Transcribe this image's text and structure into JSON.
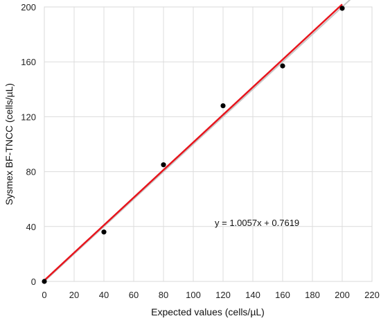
{
  "chart_data": {
    "type": "scatter",
    "xlabel": "Expected values (cells/µL)",
    "ylabel": "Sysmex BF-TNCC (cells/µL)",
    "xlim": [
      0,
      220
    ],
    "ylim": [
      0,
      200
    ],
    "xticks": [
      "0",
      "20",
      "40",
      "60",
      "80",
      "100",
      "120",
      "140",
      "160",
      "180",
      "200",
      "220"
    ],
    "yticks": [
      "0",
      "40",
      "80",
      "120",
      "160",
      "200"
    ],
    "grid": true,
    "points": [
      {
        "x": 0,
        "y": 0
      },
      {
        "x": 40,
        "y": 36
      },
      {
        "x": 80,
        "y": 85
      },
      {
        "x": 120,
        "y": 128
      },
      {
        "x": 160,
        "y": 157
      },
      {
        "x": 200,
        "y": 199
      }
    ],
    "regression": {
      "slope": 1.0057,
      "intercept": 0.7619,
      "x_range": [
        0,
        200
      ],
      "color": "#e8141c",
      "equation": "y = 1.0057x + 0.7619"
    },
    "identity_line": {
      "x_range": [
        0,
        220
      ],
      "color": "#c8c8c8"
    },
    "point_color": "#000000"
  }
}
